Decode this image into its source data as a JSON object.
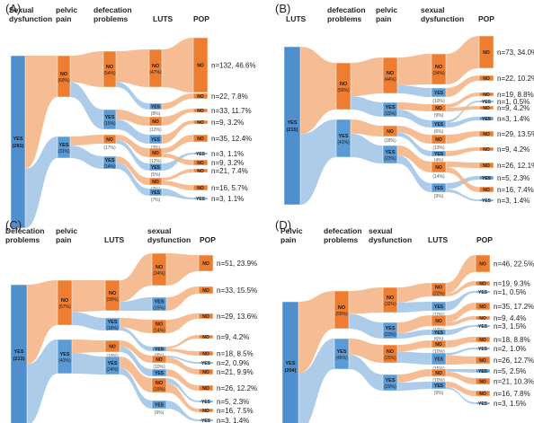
{
  "colors": {
    "no": "#ED7D31",
    "yes": "#5B9BD5",
    "root": "#4F8FCE",
    "link_no": "#F4B183",
    "link_yes": "#9DC3E6",
    "text": "#222222",
    "box_text": "#1a1a1a"
  },
  "panels": [
    {
      "id": "A",
      "label": "(A)",
      "headers": [
        "Sexual\ndysfunction",
        "pelvic\npain",
        "defecation\nproblems",
        "LUTS",
        "POP"
      ],
      "root": {
        "name": "YES",
        "value": "(283)"
      },
      "c1": [
        {
          "name": "NO",
          "value": "(69%)"
        },
        {
          "name": "YES",
          "value": "(31%)"
        }
      ],
      "c2": [
        {
          "name": "NO",
          "value": "(54%)"
        },
        {
          "name": "YES",
          "value": "(15%)"
        },
        {
          "name": "NO",
          "value": "(17%)"
        },
        {
          "name": "YES",
          "value": "(14%)"
        }
      ],
      "c3": [
        {
          "name": "NO",
          "value": "(47%)"
        },
        {
          "name": "YES",
          "value": "(8%)"
        },
        {
          "name": "NO",
          "value": "(12%)"
        },
        {
          "name": "YES",
          "value": "(3%)"
        },
        {
          "name": "NO",
          "value": "(12%)"
        },
        {
          "name": "YES",
          "value": "(5%)"
        },
        {
          "name": "NO",
          "value": "(7%)"
        },
        {
          "name": "YES",
          "value": "(7%)"
        }
      ],
      "c4": [
        {
          "name": "NO",
          "value": "n=132, 46.6%"
        },
        {
          "name": "NO",
          "value": "n=22, 7.8%"
        },
        {
          "name": "NO",
          "value": "n=33, 11.7%"
        },
        {
          "name": "NO",
          "value": "n=9, 3.2%"
        },
        {
          "name": "NO",
          "value": "n=35, 12.4%"
        },
        {
          "name": "YES",
          "value": "n=3, 1.1%"
        },
        {
          "name": "NO",
          "value": "n=9, 3.2%"
        },
        {
          "name": "NO",
          "value": "n=21, 7.4%"
        },
        {
          "name": "NO",
          "value": "n=16, 5.7%"
        },
        {
          "name": "YES",
          "value": "n=3, 1.1%"
        }
      ]
    },
    {
      "id": "B",
      "label": "(B)",
      "headers": [
        "LUTS",
        "defecation\nproblems",
        "pelvic\npain",
        "sexual\ndysfunction",
        "POP"
      ],
      "root": {
        "name": "YES",
        "value": "(215)"
      },
      "c1": [
        {
          "name": "NO",
          "value": "(59%)"
        },
        {
          "name": "YES",
          "value": "(41%)"
        }
      ],
      "c2": [
        {
          "name": "NO",
          "value": "(44%)"
        },
        {
          "name": "YES",
          "value": "(15%)"
        },
        {
          "name": "NO",
          "value": "(18%)"
        },
        {
          "name": "YES",
          "value": "(23%)"
        }
      ],
      "c3": [
        {
          "name": "NO",
          "value": "(34%)"
        },
        {
          "name": "YES",
          "value": "(10%)"
        },
        {
          "name": "NO",
          "value": "(9%)"
        },
        {
          "name": "YES",
          "value": "(6%)"
        },
        {
          "name": "NO",
          "value": "(13%)"
        },
        {
          "name": "YES",
          "value": "(4%)"
        },
        {
          "name": "NO",
          "value": "(14%)"
        },
        {
          "name": "YES",
          "value": "(9%)"
        }
      ],
      "c4": [
        {
          "name": "NO",
          "value": "n=73, 34.0%"
        },
        {
          "name": "NO",
          "value": "n=22, 10.2%"
        },
        {
          "name": "NO",
          "value": "n=19, 8.8%"
        },
        {
          "name": "YES",
          "value": "n=1, 0.5%"
        },
        {
          "name": "NO",
          "value": "n=9, 4.2%"
        },
        {
          "name": "YES",
          "value": "n=3, 1.4%"
        },
        {
          "name": "NO",
          "value": "n=29, 13.5%"
        },
        {
          "name": "NO",
          "value": "n=9, 4.2%"
        },
        {
          "name": "NO",
          "value": "n=26, 12.1%"
        },
        {
          "name": "YES",
          "value": "n=5, 2.3%"
        },
        {
          "name": "NO",
          "value": "n=16, 7.4%"
        },
        {
          "name": "YES",
          "value": "n=3, 1.4%"
        }
      ]
    },
    {
      "id": "C",
      "label": "(C)",
      "headers": [
        "Defecation\nproblems",
        "pelvic\npain",
        "LUTS",
        "sexual\ndysfunction",
        "POP"
      ],
      "root": {
        "name": "YES",
        "value": "(213)"
      },
      "c1": [
        {
          "name": "NO",
          "value": "(57%)"
        },
        {
          "name": "YES",
          "value": "(43%)"
        }
      ],
      "c2": [
        {
          "name": "NO",
          "value": "(39%)"
        },
        {
          "name": "YES",
          "value": "(18%)"
        },
        {
          "name": "NO",
          "value": "(19%)"
        },
        {
          "name": "YES",
          "value": "(24%)"
        }
      ],
      "c3": [
        {
          "name": "NO",
          "value": "(24%)"
        },
        {
          "name": "YES",
          "value": "(15%)"
        },
        {
          "name": "NO",
          "value": "(14%)"
        },
        {
          "name": "YES",
          "value": "(4%)"
        },
        {
          "name": "NO",
          "value": "(10%)"
        },
        {
          "name": "YES",
          "value": "(9%)"
        },
        {
          "name": "NO",
          "value": "(15%)"
        },
        {
          "name": "YES",
          "value": "(9%)"
        }
      ],
      "c4": [
        {
          "name": "NO",
          "value": "n=51, 23.9%"
        },
        {
          "name": "NO",
          "value": "n=33, 15.5%"
        },
        {
          "name": "NO",
          "value": "n=29, 13.6%"
        },
        {
          "name": "NO",
          "value": "n=9, 4.2%"
        },
        {
          "name": "NO",
          "value": "n=18, 8.5%"
        },
        {
          "name": "YES",
          "value": "n=2, 0.9%"
        },
        {
          "name": "NO",
          "value": "n=21, 9.9%"
        },
        {
          "name": "NO",
          "value": "n=26, 12.2%"
        },
        {
          "name": "YES",
          "value": "n=5, 2.3%"
        },
        {
          "name": "NO",
          "value": "n=16, 7.5%"
        },
        {
          "name": "YES",
          "value": "n=3, 1.4%"
        }
      ]
    },
    {
      "id": "D",
      "label": "(D)",
      "headers": [
        "Pelvic\npain",
        "defecation\nproblems",
        "sexual\ndysfunction",
        "LUTS",
        "POP"
      ],
      "root": {
        "name": "YES",
        "value": "(204)"
      },
      "c1": [
        {
          "name": "NO",
          "value": "(55%)"
        },
        {
          "name": "YES",
          "value": "(45%)"
        }
      ],
      "c2": [
        {
          "name": "NO",
          "value": "(32%)"
        },
        {
          "name": "YES",
          "value": "(23%)"
        },
        {
          "name": "NO",
          "value": "(25%)"
        },
        {
          "name": "YES",
          "value": "(20%)"
        }
      ],
      "c3": [
        {
          "name": "NO",
          "value": "(22%)"
        },
        {
          "name": "YES",
          "value": "(10%)"
        },
        {
          "name": "NO",
          "value": "(17%)"
        },
        {
          "name": "YES",
          "value": "(6%)"
        },
        {
          "name": "NO",
          "value": "(10%)"
        },
        {
          "name": "YES",
          "value": "(15%)"
        },
        {
          "name": "NO",
          "value": "(10%)"
        },
        {
          "name": "YES",
          "value": "(9%)"
        }
      ],
      "c4": [
        {
          "name": "NO",
          "value": "n=46, 22.5%"
        },
        {
          "name": "NO",
          "value": "n=19, 9.3%"
        },
        {
          "name": "YES",
          "value": "n=1, 0.5%"
        },
        {
          "name": "NO",
          "value": "n=35, 17.2%"
        },
        {
          "name": "NO",
          "value": "n=9, 4.4%"
        },
        {
          "name": "YES",
          "value": "n=3, 1.5%"
        },
        {
          "name": "NO",
          "value": "n=18, 8.8%"
        },
        {
          "name": "YES",
          "value": "n=2, 1.0%"
        },
        {
          "name": "NO",
          "value": "n=26, 12.7%"
        },
        {
          "name": "YES",
          "value": "n=5, 2.5%"
        },
        {
          "name": "NO",
          "value": "n=21, 10.3%"
        },
        {
          "name": "NO",
          "value": "n=16, 7.8%"
        },
        {
          "name": "YES",
          "value": "n=3, 1.5%"
        }
      ]
    }
  ]
}
